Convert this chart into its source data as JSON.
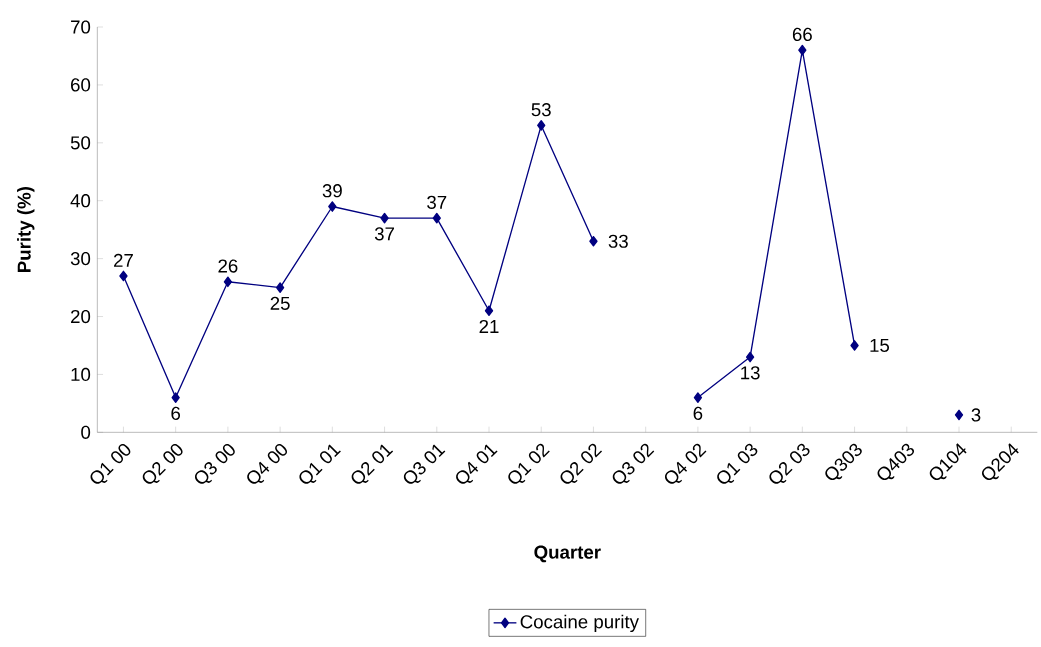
{
  "chart_data": {
    "type": "line",
    "xlabel": "Quarter",
    "ylabel": "Purity (%)",
    "categories": [
      "Q1 00",
      "Q2 00",
      "Q3 00",
      "Q4 00",
      "Q1 01",
      "Q2 01",
      "Q3 01",
      "Q4 01",
      "Q1 02",
      "Q2 02",
      "Q3 02",
      "Q4 02",
      "Q1 03",
      "Q2 03",
      "Q303",
      "Q403",
      "Q104",
      "Q204"
    ],
    "series": [
      {
        "name": "Cocaine purity",
        "color": "#000080",
        "values": [
          27,
          6,
          26,
          25,
          39,
          37,
          37,
          21,
          53,
          33,
          null,
          6,
          13,
          66,
          15,
          null,
          3,
          null
        ]
      }
    ],
    "ylim": [
      0,
      70
    ],
    "yticks": [
      0,
      10,
      20,
      30,
      40,
      50,
      60,
      70
    ],
    "marker": "diamond",
    "line_style": "solid",
    "data_labels": true,
    "legend": "bottom",
    "grid": false
  }
}
